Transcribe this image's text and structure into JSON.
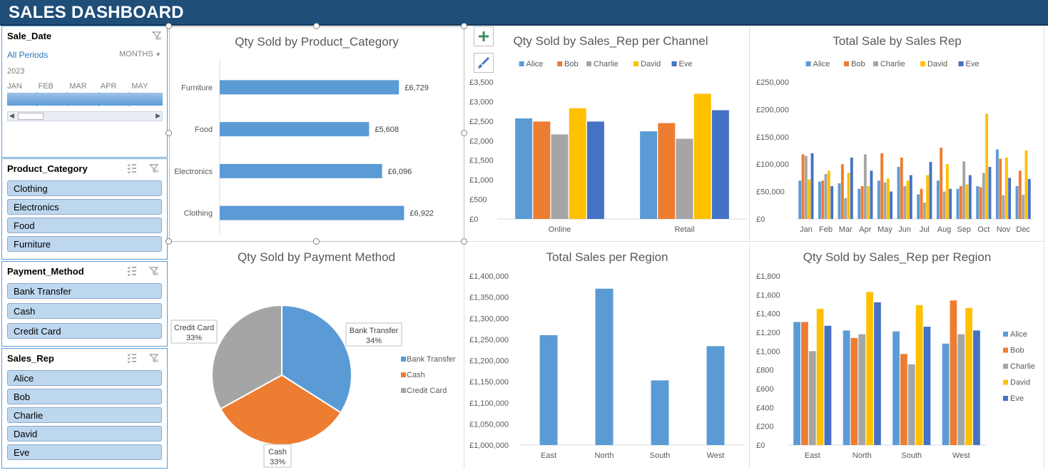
{
  "header": {
    "title": "SALES DASHBOARD"
  },
  "timeline": {
    "caption": "Sale_Date",
    "period_label": "All Periods",
    "level_label": "MONTHS",
    "year": "2023",
    "months": [
      "JAN",
      "FEB",
      "MAR",
      "APR",
      "MAY"
    ]
  },
  "slicers": {
    "product_category": {
      "caption": "Product_Category",
      "items": [
        "Clothing",
        "Electronics",
        "Food",
        "Furniture"
      ]
    },
    "payment_method": {
      "caption": "Payment_Method",
      "items": [
        "Bank Transfer",
        "Cash",
        "Credit Card"
      ]
    },
    "sales_rep": {
      "caption": "Sales_Rep",
      "items": [
        "Alice",
        "Bob",
        "Charlie",
        "David",
        "Eve"
      ]
    }
  },
  "colors": {
    "blue": "#5b9bd5",
    "orange": "#ed7d31",
    "gray": "#a5a5a5",
    "gold": "#ffc000",
    "darkblue": "#4472c4",
    "banner": "#1f4e79",
    "slicer_item": "#bdd7ee"
  },
  "icons": {
    "clear_filter": "clear-filter-icon",
    "multi_select": "multi-select-icon",
    "add": "plus-icon",
    "style": "brush-icon"
  },
  "chart_data": [
    {
      "id": "qty_by_category",
      "type": "bar",
      "title": "Qty Sold by Product_Category",
      "orientation": "horizontal",
      "categories": [
        "Furniture",
        "Food",
        "Electronics",
        "Clothing"
      ],
      "values": [
        6729,
        5608,
        6096,
        6922
      ],
      "data_labels": [
        "£6,729",
        "£5,608",
        "£6,096",
        "£6,922"
      ],
      "xlim": [
        0,
        7500
      ]
    },
    {
      "id": "qty_by_rep_channel",
      "type": "bar",
      "title": "Qty Sold by Sales_Rep per Channel",
      "categories": [
        "Online",
        "Retail"
      ],
      "series": [
        {
          "name": "Alice",
          "values": [
            2570,
            2240
          ]
        },
        {
          "name": "Bob",
          "values": [
            2490,
            2450
          ]
        },
        {
          "name": "Charlie",
          "values": [
            2160,
            2050
          ]
        },
        {
          "name": "David",
          "values": [
            2830,
            3200
          ]
        },
        {
          "name": "Eve",
          "values": [
            2490,
            2780
          ]
        }
      ],
      "ylim": [
        0,
        3500
      ],
      "yticks": [
        "£0",
        "£500",
        "£1,000",
        "£1,500",
        "£2,000",
        "£2,500",
        "£3,000",
        "£3,500"
      ],
      "legend": "top"
    },
    {
      "id": "total_sale_by_rep",
      "type": "bar",
      "title": "Total Sale by Sales Rep",
      "categories": [
        "Jan",
        "Feb",
        "Mar",
        "Apr",
        "May",
        "Jun",
        "Jul",
        "Aug",
        "Sep",
        "Oct",
        "Nov",
        "Dec"
      ],
      "series": [
        {
          "name": "Alice",
          "values": [
            70000,
            68000,
            65000,
            55000,
            70000,
            95000,
            45000,
            70000,
            55000,
            60000,
            127000,
            60000
          ]
        },
        {
          "name": "Bob",
          "values": [
            118000,
            70000,
            100000,
            60000,
            120000,
            112000,
            55000,
            130000,
            60000,
            58000,
            110000,
            88000
          ]
        },
        {
          "name": "Charlie",
          "values": [
            115000,
            82000,
            38000,
            118000,
            67000,
            60000,
            30000,
            50000,
            105000,
            84000,
            43000,
            44000
          ]
        },
        {
          "name": "David",
          "values": [
            72000,
            88000,
            84000,
            60000,
            74000,
            70000,
            80000,
            100000,
            63000,
            192000,
            112000,
            125000
          ]
        },
        {
          "name": "Eve",
          "values": [
            120000,
            60000,
            112000,
            88000,
            50000,
            80000,
            104000,
            55000,
            80000,
            95000,
            75000,
            73000
          ]
        }
      ],
      "ylim": [
        0,
        250000
      ],
      "yticks": [
        "£0",
        "£50,000",
        "£100,000",
        "£150,000",
        "£200,000",
        "£250,000"
      ],
      "legend": "top"
    },
    {
      "id": "qty_by_payment",
      "type": "pie",
      "title": "Qty Sold by Payment Method",
      "labels": [
        "Bank Transfer",
        "Cash",
        "Credit Card"
      ],
      "values": [
        34,
        33,
        33
      ],
      "data_labels": [
        "34%",
        "33%",
        "33%"
      ],
      "legend": "right"
    },
    {
      "id": "total_sales_region",
      "type": "bar",
      "title": "Total Sales per Region",
      "categories": [
        "East",
        "North",
        "South",
        "West"
      ],
      "values": [
        1260000,
        1370000,
        1153000,
        1234000
      ],
      "ylim": [
        1000000,
        1400000
      ],
      "yticks": [
        "£1,000,000",
        "£1,050,000",
        "£1,100,000",
        "£1,150,000",
        "£1,200,000",
        "£1,250,000",
        "£1,300,000",
        "£1,350,000",
        "£1,400,000"
      ]
    },
    {
      "id": "qty_by_rep_region",
      "type": "bar",
      "title": "Qty Sold by Sales_Rep per Region",
      "categories": [
        "East",
        "North",
        "South",
        "West"
      ],
      "series": [
        {
          "name": "Alice",
          "values": [
            1310,
            1220,
            1210,
            1080
          ]
        },
        {
          "name": "Bob",
          "values": [
            1310,
            1140,
            970,
            1540
          ]
        },
        {
          "name": "Charlie",
          "values": [
            1000,
            1180,
            860,
            1180
          ]
        },
        {
          "name": "David",
          "values": [
            1450,
            1630,
            1490,
            1460
          ]
        },
        {
          "name": "Eve",
          "values": [
            1270,
            1520,
            1260,
            1220
          ]
        }
      ],
      "ylim": [
        0,
        1800
      ],
      "yticks": [
        "£0",
        "£200",
        "£400",
        "£600",
        "£800",
        "£1,000",
        "£1,200",
        "£1,400",
        "£1,600",
        "£1,800"
      ],
      "legend": "right"
    }
  ]
}
